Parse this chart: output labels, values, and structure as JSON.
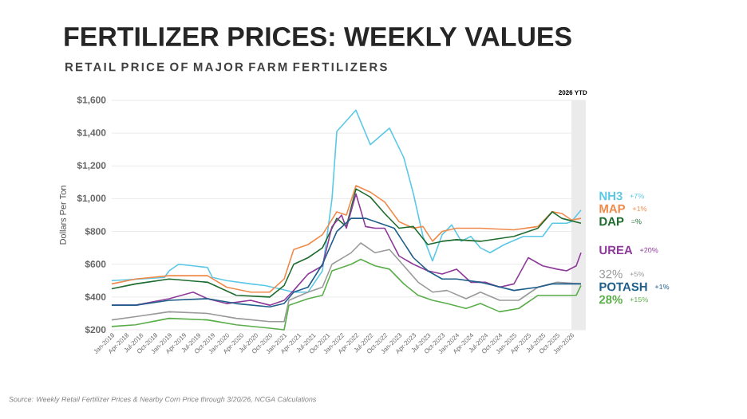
{
  "chart_data": {
    "type": "line",
    "title": "FERTILIZER PRICES: WEEKLY VALUES",
    "subtitle": "RETAIL PRICE OF MAJOR FARM FERTILIZERS",
    "ylabel": "Dollars Per Ton",
    "xlim": [
      "2018-01",
      "2026-04"
    ],
    "ylim": [
      200,
      1600
    ],
    "xticks": [
      {
        "value": "2018-01",
        "label": "Jan-2018"
      },
      {
        "value": "2018-04",
        "label": "Apr-2018"
      },
      {
        "value": "2018-07",
        "label": "Jul-2018"
      },
      {
        "value": "2018-10",
        "label": "Oct-2018"
      },
      {
        "value": "2019-01",
        "label": "Jan-2019"
      },
      {
        "value": "2019-04",
        "label": "Apr-2019"
      },
      {
        "value": "2019-07",
        "label": "Jul-2019"
      },
      {
        "value": "2019-10",
        "label": "Oct-2019"
      },
      {
        "value": "2020-01",
        "label": "Jan-2020"
      },
      {
        "value": "2020-04",
        "label": "Apr-2020"
      },
      {
        "value": "2020-07",
        "label": "Jul-2020"
      },
      {
        "value": "2020-10",
        "label": "Oct-2020"
      },
      {
        "value": "2021-01",
        "label": "Jan-2021"
      },
      {
        "value": "2021-04",
        "label": "Apr-2021"
      },
      {
        "value": "2021-07",
        "label": "Jul-2021"
      },
      {
        "value": "2021-10",
        "label": "Oct-2021"
      },
      {
        "value": "2022-01",
        "label": "Jan-2022"
      },
      {
        "value": "2022-04",
        "label": "Apr-2022"
      },
      {
        "value": "2022-07",
        "label": "Jul-2022"
      },
      {
        "value": "2022-10",
        "label": "Oct-2022"
      },
      {
        "value": "2023-01",
        "label": "Jan-2023"
      },
      {
        "value": "2023-04",
        "label": "Apr-2023"
      },
      {
        "value": "2023-07",
        "label": "Jul-2023"
      },
      {
        "value": "2023-10",
        "label": "Oct-2023"
      },
      {
        "value": "2024-01",
        "label": "Jan-2024"
      },
      {
        "value": "2024-04",
        "label": "Apr-2024"
      },
      {
        "value": "2024-07",
        "label": "Jul-2024"
      },
      {
        "value": "2024-10",
        "label": "Oct-2024"
      },
      {
        "value": "2025-01",
        "label": "Jan-2025"
      },
      {
        "value": "2025-04",
        "label": "Apr-2025"
      },
      {
        "value": "2025-07",
        "label": "Jul-2025"
      },
      {
        "value": "2025-10",
        "label": "Oct-2025"
      },
      {
        "value": "2026-01",
        "label": "Jan-2026"
      }
    ],
    "yticks": [
      {
        "value": 200,
        "label": "$200"
      },
      {
        "value": 400,
        "label": "$400"
      },
      {
        "value": 600,
        "label": "$600"
      },
      {
        "value": 800,
        "label": "$800"
      },
      {
        "value": 1000,
        "label": "$1,000"
      },
      {
        "value": 1200,
        "label": "$1,200"
      },
      {
        "value": 1400,
        "label": "$1,400"
      },
      {
        "value": 1600,
        "label": "$1,600"
      }
    ],
    "grid": "y",
    "marker": "none",
    "line_style": "solid",
    "bands": [
      {
        "axis": "x",
        "from": "2026-01",
        "to": "2026-04",
        "label": "2026 YTD",
        "color": "#ebebeb"
      }
    ],
    "annotations": [
      "+7%",
      "+1%",
      "=%",
      "+20%",
      "+5%",
      "+1%",
      "+15%",
      "Source: Weekly Retail Fertilizer Prices & Nearby Corn Price through 3/20/26, NCGA Calculations"
    ],
    "series": [
      {
        "name": "NH3",
        "color": "#5bc8e6",
        "x": [
          "2018-01",
          "2018-07",
          "2018-12",
          "2019-01",
          "2019-03",
          "2019-06",
          "2019-09",
          "2019-10",
          "2020-01",
          "2020-06",
          "2020-09",
          "2020-12",
          "2021-03",
          "2021-06",
          "2021-09",
          "2021-11",
          "2021-12",
          "2022-04",
          "2022-07",
          "2022-11",
          "2023-02",
          "2023-04",
          "2023-06",
          "2023-08",
          "2023-10",
          "2023-12",
          "2024-02",
          "2024-04",
          "2024-06",
          "2024-08",
          "2024-11",
          "2025-03",
          "2025-07",
          "2025-09",
          "2025-12",
          "2026-01",
          "2026-03"
        ],
        "values": [
          500,
          510,
          520,
          560,
          600,
          590,
          580,
          520,
          500,
          480,
          470,
          450,
          430,
          430,
          560,
          1000,
          1410,
          1540,
          1330,
          1430,
          1250,
          1030,
          770,
          620,
          780,
          840,
          740,
          770,
          700,
          670,
          720,
          770,
          770,
          850,
          850,
          860,
          930
        ]
      },
      {
        "name": "MAP",
        "color": "#f08a4b",
        "x": [
          "2018-01",
          "2018-06",
          "2019-01",
          "2019-09",
          "2020-01",
          "2020-06",
          "2020-10",
          "2021-01",
          "2021-03",
          "2021-06",
          "2021-09",
          "2021-12",
          "2022-02",
          "2022-04",
          "2022-07",
          "2022-10",
          "2023-01",
          "2023-04",
          "2023-06",
          "2023-08",
          "2023-10",
          "2024-01",
          "2024-06",
          "2025-01",
          "2025-06",
          "2025-09",
          "2025-11",
          "2026-01",
          "2026-03"
        ],
        "values": [
          480,
          510,
          530,
          530,
          460,
          430,
          430,
          510,
          690,
          720,
          780,
          920,
          900,
          1080,
          1040,
          980,
          860,
          820,
          830,
          740,
          800,
          820,
          820,
          810,
          830,
          920,
          910,
          870,
          880
        ]
      },
      {
        "name": "DAP",
        "color": "#1e6b2e",
        "x": [
          "2018-01",
          "2018-06",
          "2019-01",
          "2019-09",
          "2020-03",
          "2020-10",
          "2021-01",
          "2021-03",
          "2021-06",
          "2021-09",
          "2021-12",
          "2022-02",
          "2022-04",
          "2022-07",
          "2022-10",
          "2023-01",
          "2023-04",
          "2023-07",
          "2023-10",
          "2024-01",
          "2024-06",
          "2025-01",
          "2025-06",
          "2025-09",
          "2025-11",
          "2026-03"
        ],
        "values": [
          450,
          480,
          510,
          490,
          410,
          400,
          470,
          600,
          640,
          700,
          880,
          830,
          1060,
          1010,
          910,
          820,
          830,
          720,
          740,
          750,
          740,
          770,
          820,
          920,
          880,
          850
        ]
      },
      {
        "name": "UREA",
        "color": "#8e3a9a",
        "x": [
          "2018-01",
          "2018-06",
          "2019-01",
          "2019-06",
          "2019-09",
          "2020-01",
          "2020-06",
          "2020-10",
          "2021-01",
          "2021-03",
          "2021-06",
          "2021-09",
          "2021-11",
          "2022-01",
          "2022-02",
          "2022-04",
          "2022-06",
          "2022-08",
          "2022-10",
          "2023-01",
          "2023-04",
          "2023-07",
          "2023-10",
          "2024-01",
          "2024-04",
          "2024-07",
          "2024-10",
          "2025-01",
          "2025-04",
          "2025-07",
          "2025-10",
          "2025-12",
          "2026-02",
          "2026-03"
        ],
        "values": [
          350,
          350,
          390,
          430,
          390,
          360,
          380,
          350,
          380,
          440,
          540,
          590,
          830,
          900,
          820,
          1030,
          830,
          820,
          820,
          650,
          600,
          560,
          540,
          570,
          490,
          490,
          460,
          480,
          640,
          590,
          570,
          560,
          590,
          670
        ]
      },
      {
        "name": "32%",
        "color": "#9a9a9a",
        "x": [
          "2018-01",
          "2018-06",
          "2019-01",
          "2019-09",
          "2020-03",
          "2020-10",
          "2021-01",
          "2021-02",
          "2021-06",
          "2021-09",
          "2021-11",
          "2022-03",
          "2022-05",
          "2022-08",
          "2022-11",
          "2023-02",
          "2023-05",
          "2023-08",
          "2023-11",
          "2024-03",
          "2024-06",
          "2024-10",
          "2025-02",
          "2025-06",
          "2025-10",
          "2026-03"
        ],
        "values": [
          260,
          280,
          310,
          300,
          270,
          250,
          250,
          380,
          430,
          460,
          600,
          670,
          730,
          670,
          690,
          590,
          490,
          430,
          440,
          390,
          430,
          380,
          380,
          460,
          490,
          480
        ]
      },
      {
        "name": "POTASH",
        "color": "#1f5f8b",
        "x": [
          "2018-01",
          "2018-06",
          "2019-01",
          "2019-09",
          "2020-03",
          "2020-10",
          "2021-01",
          "2021-03",
          "2021-06",
          "2021-09",
          "2021-12",
          "2022-03",
          "2022-06",
          "2022-09",
          "2022-12",
          "2023-04",
          "2023-07",
          "2023-10",
          "2024-01",
          "2024-06",
          "2025-01",
          "2025-06",
          "2025-09",
          "2026-01",
          "2026-03"
        ],
        "values": [
          350,
          350,
          380,
          390,
          360,
          340,
          360,
          430,
          460,
          600,
          800,
          880,
          880,
          850,
          820,
          640,
          560,
          510,
          510,
          490,
          440,
          460,
          480,
          480,
          480
        ]
      },
      {
        "name": "28%",
        "color": "#5aae4a",
        "x": [
          "2018-01",
          "2018-06",
          "2019-01",
          "2019-09",
          "2020-03",
          "2020-10",
          "2021-01",
          "2021-02",
          "2021-06",
          "2021-09",
          "2021-11",
          "2022-03",
          "2022-05",
          "2022-08",
          "2022-11",
          "2023-02",
          "2023-05",
          "2023-08",
          "2023-11",
          "2024-03",
          "2024-06",
          "2024-10",
          "2025-02",
          "2025-06",
          "2025-10",
          "2026-02",
          "2026-03"
        ],
        "values": [
          220,
          230,
          270,
          260,
          230,
          210,
          200,
          350,
          390,
          410,
          560,
          600,
          630,
          590,
          570,
          480,
          410,
          380,
          360,
          330,
          360,
          310,
          330,
          410,
          410,
          410,
          470
        ]
      }
    ]
  }
}
